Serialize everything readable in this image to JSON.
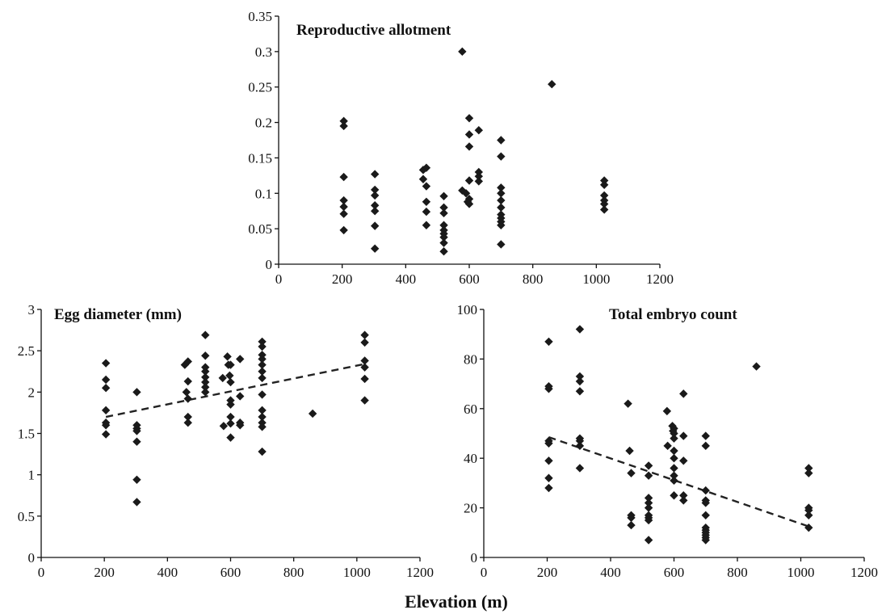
{
  "shared_xlabel": "Elevation (m)",
  "chart_data": [
    {
      "type": "scatter",
      "title": "Reproductive allotment",
      "xlim": [
        0,
        1200
      ],
      "ylim": [
        0,
        0.35
      ],
      "xticks": [
        "0",
        "200",
        "400",
        "600",
        "800",
        "1000",
        "1200"
      ],
      "yticks": [
        "0",
        "0.05",
        "0.1",
        "0.15",
        "0.2",
        "0.25",
        "0.3",
        "0.35"
      ],
      "xtick_values": [
        0,
        200,
        400,
        600,
        800,
        1000,
        1200
      ],
      "ytick_values": [
        0,
        0.05,
        0.1,
        0.15,
        0.2,
        0.25,
        0.3,
        0.35
      ],
      "trendline": null,
      "points": [
        [
          205,
          0.202
        ],
        [
          205,
          0.195
        ],
        [
          205,
          0.123
        ],
        [
          205,
          0.09
        ],
        [
          205,
          0.081
        ],
        [
          205,
          0.071
        ],
        [
          205,
          0.048
        ],
        [
          303,
          0.127
        ],
        [
          303,
          0.105
        ],
        [
          303,
          0.097
        ],
        [
          303,
          0.083
        ],
        [
          303,
          0.075
        ],
        [
          303,
          0.054
        ],
        [
          303,
          0.022
        ],
        [
          455,
          0.133
        ],
        [
          455,
          0.12
        ],
        [
          465,
          0.136
        ],
        [
          465,
          0.11
        ],
        [
          465,
          0.088
        ],
        [
          465,
          0.074
        ],
        [
          465,
          0.055
        ],
        [
          520,
          0.096
        ],
        [
          520,
          0.08
        ],
        [
          520,
          0.072
        ],
        [
          520,
          0.055
        ],
        [
          520,
          0.048
        ],
        [
          520,
          0.043
        ],
        [
          520,
          0.038
        ],
        [
          520,
          0.03
        ],
        [
          520,
          0.018
        ],
        [
          578,
          0.3
        ],
        [
          578,
          0.104
        ],
        [
          590,
          0.1
        ],
        [
          595,
          0.088
        ],
        [
          600,
          0.206
        ],
        [
          600,
          0.183
        ],
        [
          600,
          0.166
        ],
        [
          600,
          0.118
        ],
        [
          600,
          0.092
        ],
        [
          600,
          0.085
        ],
        [
          630,
          0.189
        ],
        [
          630,
          0.13
        ],
        [
          630,
          0.124
        ],
        [
          630,
          0.117
        ],
        [
          700,
          0.175
        ],
        [
          700,
          0.152
        ],
        [
          700,
          0.108
        ],
        [
          700,
          0.1
        ],
        [
          700,
          0.09
        ],
        [
          700,
          0.08
        ],
        [
          700,
          0.07
        ],
        [
          700,
          0.065
        ],
        [
          700,
          0.06
        ],
        [
          700,
          0.055
        ],
        [
          700,
          0.028
        ],
        [
          860,
          0.254
        ],
        [
          1025,
          0.118
        ],
        [
          1025,
          0.112
        ],
        [
          1025,
          0.097
        ],
        [
          1025,
          0.09
        ],
        [
          1025,
          0.085
        ],
        [
          1025,
          0.077
        ]
      ]
    },
    {
      "type": "scatter",
      "title": "Egg diameter (mm)",
      "xlim": [
        0,
        1200
      ],
      "ylim": [
        0,
        3
      ],
      "xticks": [
        "0",
        "200",
        "400",
        "600",
        "800",
        "1000",
        "1200"
      ],
      "yticks": [
        "0",
        "0.5",
        "1",
        "1.5",
        "2",
        "2.5",
        "3"
      ],
      "xtick_values": [
        0,
        200,
        400,
        600,
        800,
        1000,
        1200
      ],
      "ytick_values": [
        0,
        0.5,
        1,
        1.5,
        2,
        2.5,
        3
      ],
      "trendline": [
        [
          205,
          1.7
        ],
        [
          1025,
          2.34
        ]
      ],
      "points": [
        [
          205,
          2.35
        ],
        [
          205,
          2.15
        ],
        [
          205,
          2.05
        ],
        [
          205,
          1.78
        ],
        [
          205,
          1.63
        ],
        [
          205,
          1.6
        ],
        [
          205,
          1.49
        ],
        [
          303,
          2.0
        ],
        [
          303,
          1.6
        ],
        [
          303,
          1.56
        ],
        [
          303,
          1.53
        ],
        [
          303,
          1.4
        ],
        [
          303,
          0.94
        ],
        [
          303,
          0.67
        ],
        [
          455,
          2.33
        ],
        [
          460,
          2.0
        ],
        [
          465,
          2.37
        ],
        [
          465,
          2.13
        ],
        [
          465,
          1.92
        ],
        [
          465,
          1.7
        ],
        [
          465,
          1.63
        ],
        [
          520,
          2.69
        ],
        [
          520,
          2.44
        ],
        [
          520,
          2.3
        ],
        [
          520,
          2.25
        ],
        [
          520,
          2.18
        ],
        [
          520,
          2.12
        ],
        [
          520,
          2.06
        ],
        [
          520,
          2.0
        ],
        [
          575,
          2.17
        ],
        [
          578,
          1.59
        ],
        [
          590,
          2.43
        ],
        [
          593,
          2.33
        ],
        [
          597,
          2.2
        ],
        [
          600,
          2.33
        ],
        [
          600,
          2.12
        ],
        [
          600,
          1.9
        ],
        [
          600,
          1.85
        ],
        [
          600,
          1.7
        ],
        [
          600,
          1.62
        ],
        [
          600,
          1.45
        ],
        [
          630,
          2.4
        ],
        [
          630,
          1.95
        ],
        [
          630,
          1.63
        ],
        [
          630,
          1.6
        ],
        [
          700,
          2.61
        ],
        [
          700,
          2.55
        ],
        [
          700,
          2.45
        ],
        [
          700,
          2.4
        ],
        [
          700,
          2.33
        ],
        [
          700,
          2.25
        ],
        [
          700,
          2.17
        ],
        [
          700,
          1.97
        ],
        [
          700,
          1.78
        ],
        [
          700,
          1.7
        ],
        [
          700,
          1.63
        ],
        [
          700,
          1.58
        ],
        [
          700,
          1.28
        ],
        [
          860,
          1.74
        ],
        [
          1025,
          2.69
        ],
        [
          1025,
          2.6
        ],
        [
          1025,
          2.38
        ],
        [
          1025,
          2.3
        ],
        [
          1025,
          2.16
        ],
        [
          1025,
          1.9
        ]
      ]
    },
    {
      "type": "scatter",
      "title": "Total embryo count",
      "xlim": [
        0,
        1200
      ],
      "ylim": [
        0,
        100
      ],
      "xticks": [
        "0",
        "200",
        "400",
        "600",
        "800",
        "1000",
        "1200"
      ],
      "yticks": [
        "0",
        "20",
        "40",
        "60",
        "80",
        "100"
      ],
      "xtick_values": [
        0,
        200,
        400,
        600,
        800,
        1000,
        1200
      ],
      "ytick_values": [
        0,
        20,
        40,
        60,
        80,
        100
      ],
      "trendline": [
        [
          205,
          48.5
        ],
        [
          1025,
          12.5
        ]
      ],
      "points": [
        [
          205,
          87
        ],
        [
          205,
          69
        ],
        [
          205,
          68
        ],
        [
          205,
          47
        ],
        [
          205,
          46
        ],
        [
          205,
          39
        ],
        [
          205,
          32
        ],
        [
          205,
          28
        ],
        [
          303,
          92
        ],
        [
          303,
          73
        ],
        [
          303,
          71
        ],
        [
          303,
          67
        ],
        [
          303,
          48
        ],
        [
          303,
          47
        ],
        [
          303,
          45
        ],
        [
          303,
          36
        ],
        [
          455,
          62
        ],
        [
          460,
          43
        ],
        [
          465,
          34
        ],
        [
          465,
          17
        ],
        [
          465,
          16
        ],
        [
          465,
          13
        ],
        [
          520,
          37
        ],
        [
          520,
          33
        ],
        [
          520,
          24
        ],
        [
          520,
          22
        ],
        [
          520,
          20
        ],
        [
          520,
          17
        ],
        [
          520,
          16
        ],
        [
          520,
          15
        ],
        [
          520,
          7
        ],
        [
          578,
          59
        ],
        [
          580,
          45
        ],
        [
          595,
          53
        ],
        [
          597,
          51
        ],
        [
          600,
          52
        ],
        [
          600,
          50
        ],
        [
          600,
          48
        ],
        [
          600,
          43
        ],
        [
          600,
          40
        ],
        [
          600,
          36
        ],
        [
          600,
          33
        ],
        [
          600,
          31
        ],
        [
          600,
          25
        ],
        [
          630,
          66
        ],
        [
          630,
          49
        ],
        [
          630,
          39
        ],
        [
          630,
          25
        ],
        [
          630,
          23
        ],
        [
          700,
          49
        ],
        [
          700,
          45
        ],
        [
          700,
          27
        ],
        [
          700,
          23
        ],
        [
          700,
          22
        ],
        [
          700,
          17
        ],
        [
          700,
          12
        ],
        [
          700,
          11
        ],
        [
          700,
          10
        ],
        [
          700,
          9
        ],
        [
          700,
          8
        ],
        [
          700,
          7
        ],
        [
          860,
          77
        ],
        [
          1025,
          36
        ],
        [
          1025,
          34
        ],
        [
          1025,
          20
        ],
        [
          1025,
          19
        ],
        [
          1025,
          17
        ],
        [
          1025,
          12
        ]
      ]
    }
  ]
}
